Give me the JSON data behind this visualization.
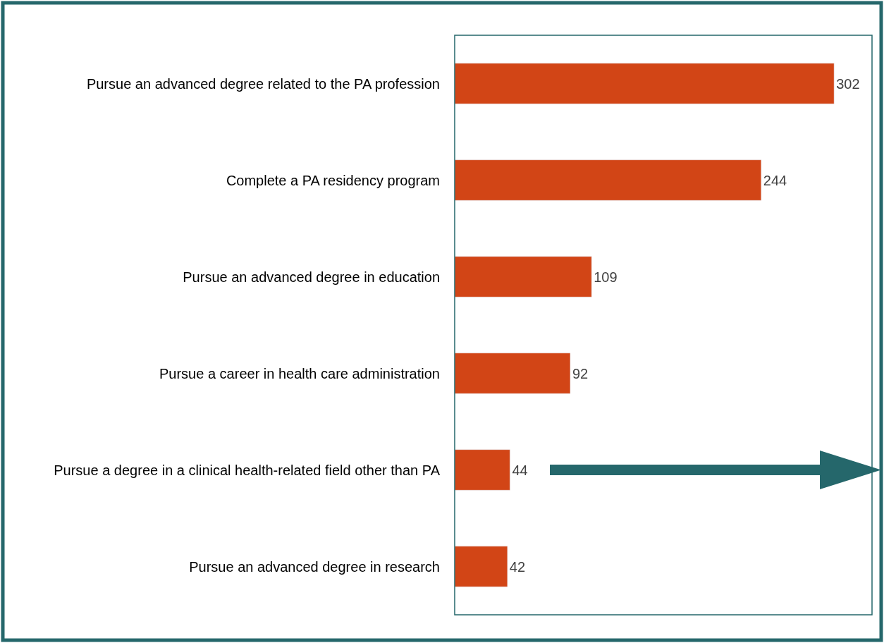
{
  "chart_data": {
    "type": "bar",
    "orientation": "horizontal",
    "categories": [
      "Pursue an advanced degree related to the PA profession",
      "Complete a PA residency program",
      "Pursue an advanced degree in education",
      "Pursue a career in health care administration",
      "Pursue a degree in a clinical health-related field other than PA",
      "Pursue an advanced degree in research"
    ],
    "values": [
      302,
      244,
      109,
      92,
      44,
      42
    ],
    "color": "#d24516",
    "data_labels": true,
    "tick_labels": "y"
  }
}
